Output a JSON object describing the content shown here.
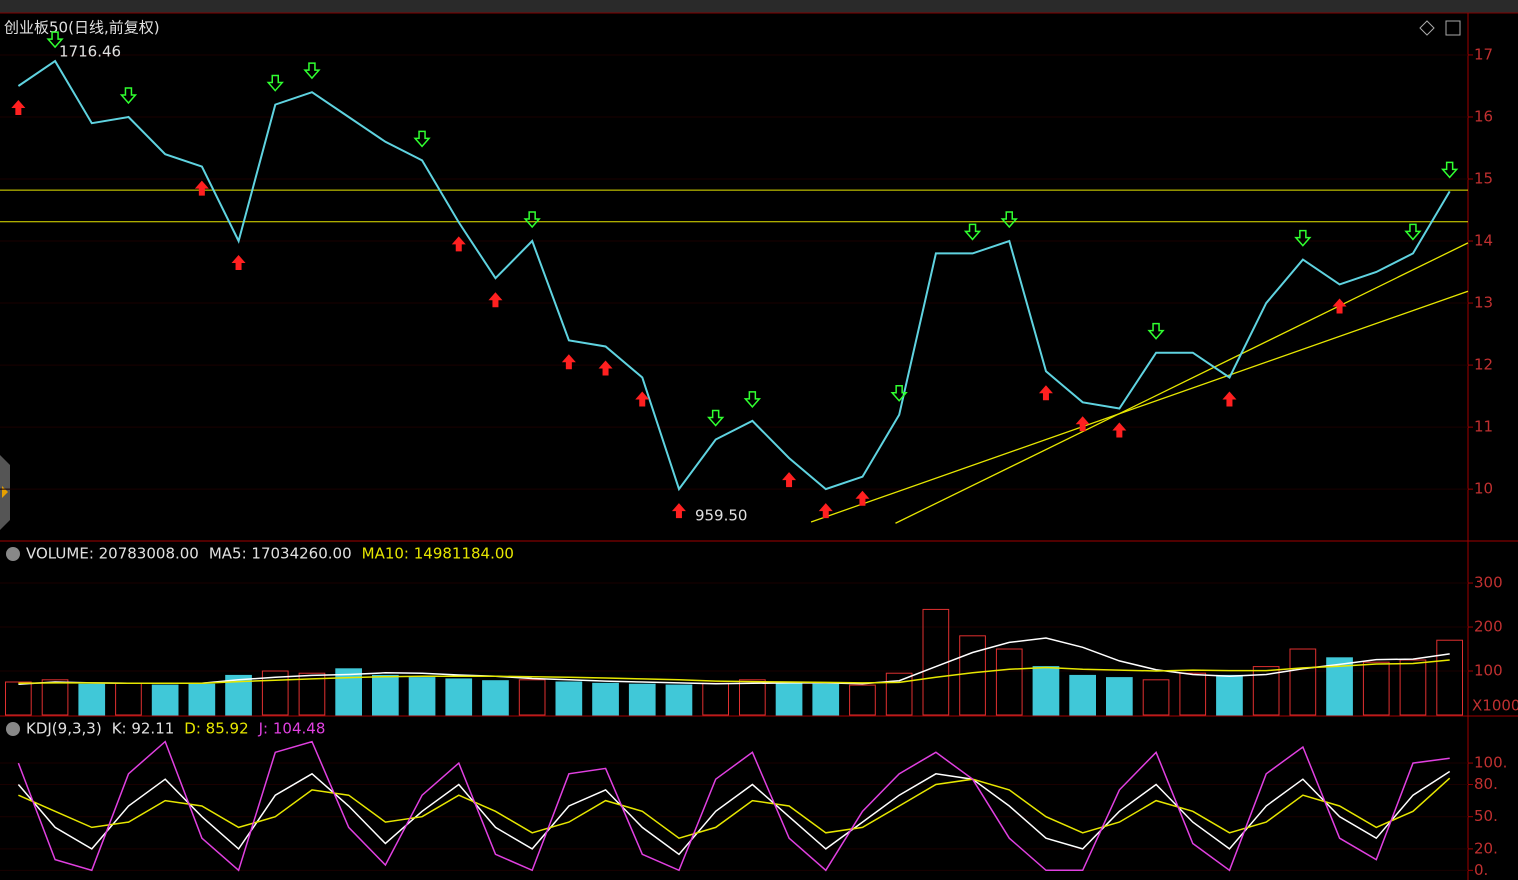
{
  "chart_data": [
    {
      "type": "line",
      "title": "创业板50(日线,前复权)",
      "color": "#5fd3e0",
      "values": [
        1650,
        1690,
        1590,
        1600,
        1540,
        1520,
        1400,
        1620,
        1640,
        1600,
        1560,
        1530,
        1430,
        1340,
        1400,
        1240,
        1230,
        1180,
        1000,
        1080,
        1110,
        1050,
        1000,
        1020,
        1120,
        1380,
        1380,
        1400,
        1190,
        1140,
        1130,
        1220,
        1220,
        1180,
        1300,
        1370,
        1330,
        1350,
        1380,
        1480
      ],
      "high_label": "1716.46",
      "low_label": "959.50",
      "ylim": [
        918,
        1766
      ],
      "yticks": [
        {
          "value": 1000,
          "label": "10"
        },
        {
          "value": 1100,
          "label": "11"
        },
        {
          "value": 1200,
          "label": "12"
        },
        {
          "value": 1300,
          "label": "13"
        },
        {
          "value": 1400,
          "label": "14"
        },
        {
          "value": 1500,
          "label": "15"
        },
        {
          "value": 1600,
          "label": "16"
        },
        {
          "value": 1700,
          "label": "17"
        }
      ],
      "hlines": [
        1482,
        1431
      ],
      "line_color": "#e6e600",
      "trendlines": [
        {
          "x": [
            21.6,
            39.5
          ],
          "values": [
            947,
            1319
          ]
        },
        {
          "x": [
            23.9,
            39.5
          ],
          "values": [
            945,
            1397
          ]
        }
      ],
      "buy_signals": [
        0,
        5,
        6,
        12,
        13,
        15,
        16,
        17,
        18,
        21,
        22,
        23,
        28,
        29,
        30,
        33,
        36
      ],
      "sell_signals": [
        1,
        3,
        7,
        8,
        11,
        14,
        19,
        20,
        24,
        26,
        27,
        31,
        35,
        38,
        39
      ]
    },
    {
      "type": "bar",
      "header": [
        {
          "text": "VOLUME: 20783008.00",
          "color": "#e0e0e0"
        },
        {
          "text": "MA5: 17034260.00",
          "color": "#e0e0e0"
        },
        {
          "text": "MA10: 14981184.00",
          "color": "#e6e600"
        }
      ],
      "values": [
        75,
        80,
        70,
        72,
        68,
        70,
        90,
        100,
        95,
        105,
        90,
        85,
        82,
        78,
        80,
        75,
        72,
        70,
        68,
        72,
        80,
        75,
        70,
        68,
        95,
        240,
        180,
        150,
        110,
        90,
        85,
        80,
        95,
        90,
        110,
        150,
        130,
        120,
        125,
        170
      ],
      "up_color": "#e03030",
      "down_color": "#40c8d8",
      "lines": [
        {
          "values": [
            70,
            75,
            73,
            72,
            72,
            72,
            80,
            86,
            90,
            92,
            96,
            95,
            91,
            88,
            83,
            80,
            77,
            75,
            73,
            71,
            72,
            73,
            73,
            71,
            78,
            110,
            142,
            165,
            175,
            154,
            123,
            103,
            92,
            88,
            92,
            105,
            115,
            126,
            127,
            139
          ],
          "color": "#ffffff"
        },
        {
          "values": [
            72,
            73,
            73,
            72,
            72,
            72,
            76,
            79,
            82,
            85,
            87,
            88,
            88,
            88,
            87,
            86,
            84,
            82,
            80,
            77,
            76,
            75,
            74,
            73,
            74,
            86,
            96,
            104,
            108,
            104,
            102,
            100,
            102,
            101,
            101,
            107,
            111,
            116,
            117,
            125
          ],
          "color": "#e6e600"
        }
      ],
      "ylim": [
        0,
        391
      ],
      "yticks": [
        100,
        200,
        300
      ],
      "unit_label": "X1000"
    },
    {
      "type": "line",
      "header": [
        {
          "text": "KDJ(9,3,3)",
          "color": "#e0e0e0"
        },
        {
          "text": "K: 92.11",
          "color": "#e0e0e0"
        },
        {
          "text": "D: 85.92",
          "color": "#e6e600"
        },
        {
          "text": "J: 104.48",
          "color": "#e040e0"
        }
      ],
      "series": [
        {
          "color": "#ffffff",
          "values": [
            80,
            40,
            20,
            60,
            85,
            50,
            20,
            70,
            90,
            60,
            25,
            55,
            80,
            40,
            20,
            60,
            75,
            40,
            15,
            55,
            80,
            50,
            20,
            45,
            70,
            90,
            85,
            60,
            30,
            20,
            55,
            80,
            45,
            20,
            60,
            85,
            50,
            30,
            70,
            92.11
          ]
        },
        {
          "color": "#e6e600",
          "values": [
            70,
            55,
            40,
            45,
            65,
            60,
            40,
            50,
            75,
            70,
            45,
            50,
            70,
            55,
            35,
            45,
            65,
            55,
            30,
            40,
            65,
            60,
            35,
            40,
            60,
            80,
            85,
            75,
            50,
            35,
            45,
            65,
            55,
            35,
            45,
            70,
            60,
            40,
            55,
            85.92
          ]
        },
        {
          "color": "#e040e0",
          "values": [
            100,
            10,
            0,
            90,
            120,
            30,
            0,
            110,
            120,
            40,
            5,
            70,
            100,
            15,
            0,
            90,
            95,
            15,
            0,
            85,
            110,
            30,
            0,
            55,
            90,
            110,
            85,
            30,
            0,
            0,
            75,
            110,
            25,
            0,
            90,
            115,
            30,
            10,
            100,
            104.48
          ]
        }
      ],
      "ylim": [
        -9,
        142
      ],
      "yticks": [
        {
          "value": 0,
          "label": "0."
        },
        {
          "value": 20,
          "label": "20."
        },
        {
          "value": 50,
          "label": "50."
        },
        {
          "value": 80,
          "label": "80."
        },
        {
          "value": 100,
          "label": "100."
        }
      ]
    }
  ]
}
